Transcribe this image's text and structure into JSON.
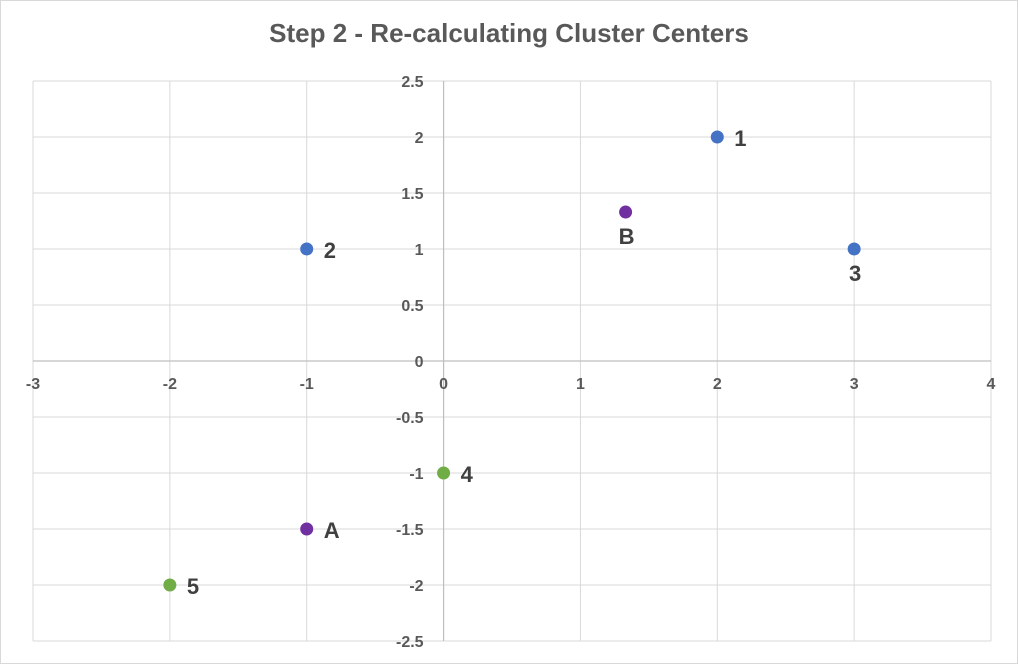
{
  "chart_data": {
    "type": "scatter",
    "title": "Step 2 - Re-calculating Cluster Centers",
    "xlabel": "",
    "ylabel": "",
    "xlim": [
      -3,
      4
    ],
    "ylim": [
      -2.5,
      2.5
    ],
    "x_ticks": [
      -3,
      -2,
      -1,
      0,
      1,
      2,
      3,
      4
    ],
    "y_ticks": [
      -2.5,
      -2,
      -1.5,
      -1,
      -0.5,
      0,
      0.5,
      1,
      1.5,
      2,
      2.5
    ],
    "x_tick_labels": [
      "-3",
      "-2",
      "-1",
      "0",
      "1",
      "2",
      "3",
      "4"
    ],
    "y_tick_labels": [
      "-2.5",
      "-2",
      "-1.5",
      "-1",
      "-0.5",
      "0",
      "0.5",
      "1",
      "1.5",
      "2",
      "2.5"
    ],
    "grid": true,
    "legend": "none",
    "series": [
      {
        "color": "#4472c4",
        "points": [
          {
            "label": "1",
            "x": 2,
            "y": 2,
            "label_pos": "right"
          },
          {
            "label": "2",
            "x": -1,
            "y": 1,
            "label_pos": "right"
          },
          {
            "label": "3",
            "x": 3,
            "y": 1,
            "label_pos": "below"
          }
        ]
      },
      {
        "color": "#70ad47",
        "points": [
          {
            "label": "4",
            "x": 0,
            "y": -1,
            "label_pos": "right"
          },
          {
            "label": "5",
            "x": -2,
            "y": -2,
            "label_pos": "right"
          }
        ]
      },
      {
        "color": "#7030a0",
        "points": [
          {
            "label": "A",
            "x": -1,
            "y": -1.5,
            "label_pos": "right"
          },
          {
            "label": "B",
            "x": 1.33,
            "y": 1.33,
            "label_pos": "below"
          }
        ]
      }
    ]
  }
}
